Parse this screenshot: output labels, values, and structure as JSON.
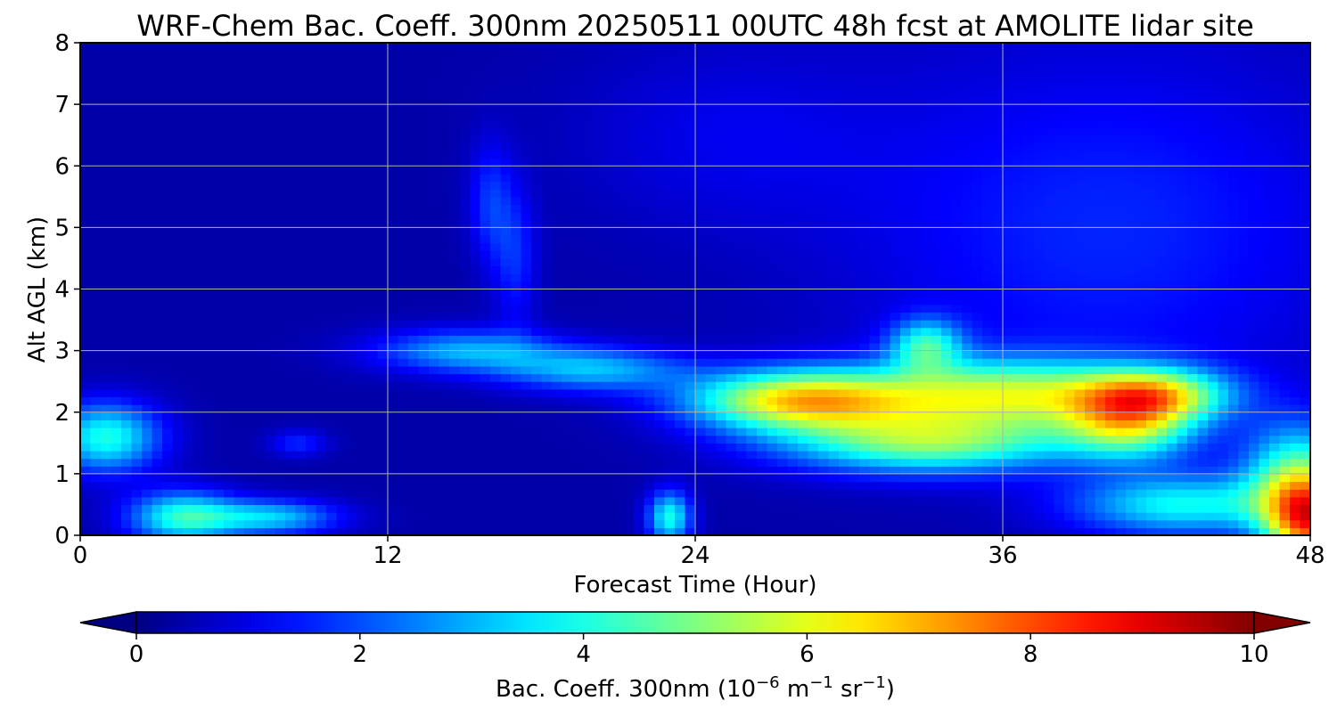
{
  "chart_data": {
    "type": "heatmap",
    "title": "WRF-Chem Bac. Coeff. 300nm  20250511 00UTC 48h fcst at AMOLITE lidar site",
    "xlabel": "Forecast Time (Hour)",
    "ylabel": "Alt AGL (km)",
    "xlim": [
      0,
      48
    ],
    "ylim": [
      0,
      8
    ],
    "x_ticks": [
      0,
      12,
      24,
      36,
      48
    ],
    "y_ticks": [
      0,
      1,
      2,
      3,
      4,
      5,
      6,
      7,
      8
    ],
    "grid": true,
    "colormap": "jet",
    "colorbar": {
      "orientation": "horizontal",
      "position": "bottom",
      "range": [
        0,
        10
      ],
      "ticks": [
        0,
        2,
        4,
        6,
        8,
        10
      ],
      "extend": "both",
      "label_main": "Bac. Coeff. 300nm  (10",
      "label_exp1": "−6",
      "label_mid": " m",
      "label_exp2": "−1",
      "label_mid2": " sr",
      "label_exp3": "−1",
      "label_end": ")"
    },
    "features": [
      {
        "x": 1,
        "y": 1.6,
        "sx": 1.5,
        "sy": 0.4,
        "v": 3.6
      },
      {
        "x": 4,
        "y": 0.3,
        "sx": 1.5,
        "sy": 0.3,
        "v": 3.6
      },
      {
        "x": 7.5,
        "y": 0.3,
        "sx": 1.8,
        "sy": 0.2,
        "v": 2.8
      },
      {
        "x": 8.5,
        "y": 1.5,
        "sx": 0.8,
        "sy": 0.15,
        "v": 1.2
      },
      {
        "x": 23,
        "y": 0.3,
        "sx": 0.6,
        "sy": 0.3,
        "v": 3.5
      },
      {
        "x": 16,
        "y": 5.4,
        "sx": 0.6,
        "sy": 0.7,
        "v": 1.3
      },
      {
        "x": 17,
        "y": 4.5,
        "sx": 0.6,
        "sy": 0.8,
        "v": 1.2
      },
      {
        "x": 15,
        "y": 3.0,
        "sx": 2.5,
        "sy": 0.25,
        "v": 2.5
      },
      {
        "x": 20,
        "y": 2.7,
        "sx": 2.5,
        "sy": 0.25,
        "v": 2.6
      },
      {
        "x": 28,
        "y": 2.2,
        "sx": 3.0,
        "sy": 0.35,
        "v": 5.8
      },
      {
        "x": 33,
        "y": 1.5,
        "sx": 4.0,
        "sy": 0.35,
        "v": 4.2
      },
      {
        "x": 36,
        "y": 2.3,
        "sx": 4.0,
        "sy": 0.4,
        "v": 4.8
      },
      {
        "x": 41,
        "y": 1.8,
        "sx": 1.8,
        "sy": 0.4,
        "v": 4.1
      },
      {
        "x": 42,
        "y": 2.3,
        "sx": 2.0,
        "sy": 0.3,
        "v": 4.0
      },
      {
        "x": 33,
        "y": 3.1,
        "sx": 1.0,
        "sy": 0.3,
        "v": 3.2
      },
      {
        "x": 43,
        "y": 0.5,
        "sx": 3.0,
        "sy": 0.35,
        "v": 3.3
      },
      {
        "x": 48,
        "y": 0.2,
        "sx": 1.2,
        "sy": 0.5,
        "v": 6.3
      },
      {
        "x": 47.5,
        "y": 1.0,
        "sx": 1.5,
        "sy": 0.6,
        "v": 3.7
      }
    ]
  }
}
